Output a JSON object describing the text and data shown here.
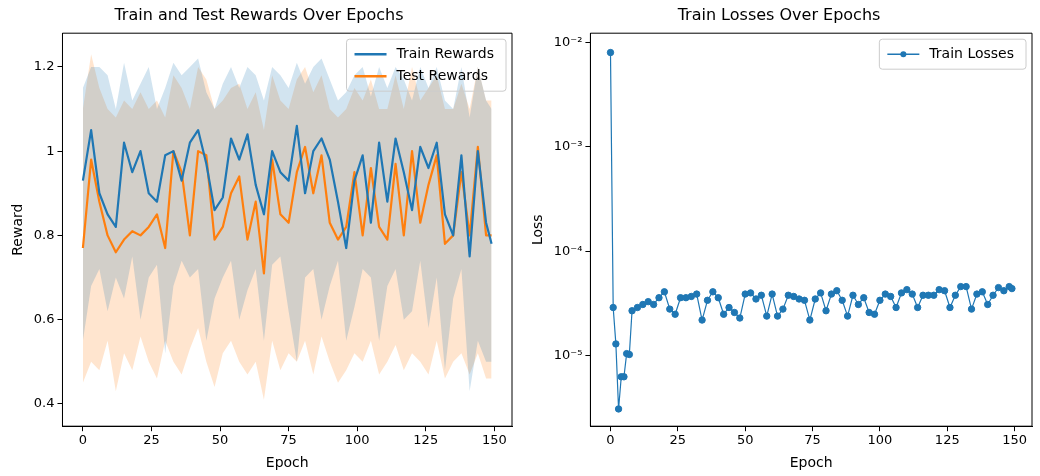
{
  "chart_data": [
    {
      "type": "line",
      "title": "Train and Test Rewards Over Epochs",
      "xlabel": "Epoch",
      "ylabel": "Reward",
      "x": [
        0,
        3,
        6,
        9,
        12,
        15,
        18,
        21,
        24,
        27,
        30,
        33,
        36,
        39,
        42,
        45,
        48,
        51,
        54,
        57,
        60,
        63,
        66,
        69,
        72,
        75,
        78,
        81,
        84,
        87,
        90,
        93,
        96,
        99,
        102,
        105,
        108,
        111,
        114,
        117,
        120,
        123,
        126,
        129,
        132,
        135,
        138,
        141,
        144,
        147,
        149
      ],
      "series": [
        {
          "name": "Train Rewards",
          "color": "#1f77b4",
          "values": [
            0.93,
            1.05,
            0.9,
            0.85,
            0.82,
            1.02,
            0.95,
            1.0,
            0.9,
            0.88,
            0.99,
            1.0,
            0.93,
            1.02,
            1.05,
            0.97,
            0.86,
            0.89,
            1.03,
            0.98,
            1.04,
            0.92,
            0.85,
            1.0,
            0.95,
            0.93,
            1.06,
            0.9,
            1.0,
            1.03,
            0.98,
            0.88,
            0.77,
            0.93,
            0.99,
            0.83,
            1.02,
            0.88,
            1.03,
            0.95,
            0.86,
            1.01,
            0.96,
            1.02,
            0.85,
            0.8,
            0.99,
            0.75,
            1.0,
            0.83,
            0.78
          ],
          "lower": [
            0.55,
            0.68,
            0.72,
            0.62,
            0.7,
            0.65,
            0.75,
            0.6,
            0.7,
            0.73,
            0.52,
            0.68,
            0.74,
            0.7,
            0.72,
            0.55,
            0.65,
            0.7,
            0.74,
            0.6,
            0.67,
            0.72,
            0.55,
            0.73,
            0.75,
            0.62,
            0.5,
            0.7,
            0.72,
            0.6,
            0.68,
            0.74,
            0.55,
            0.63,
            0.72,
            0.7,
            0.55,
            0.68,
            0.72,
            0.6,
            0.62,
            0.74,
            0.58,
            0.7,
            0.48,
            0.65,
            0.72,
            0.43,
            0.55,
            0.5,
            0.5
          ],
          "upper": [
            1.15,
            1.2,
            1.2,
            1.18,
            1.1,
            1.21,
            1.12,
            1.16,
            1.2,
            1.1,
            1.15,
            1.21,
            1.18,
            1.2,
            1.22,
            1.14,
            1.1,
            1.16,
            1.2,
            1.15,
            1.2,
            1.18,
            1.12,
            1.2,
            1.18,
            1.15,
            1.21,
            1.16,
            1.2,
            1.22,
            1.17,
            1.12,
            1.14,
            1.18,
            1.2,
            1.13,
            1.2,
            1.15,
            1.2,
            1.17,
            1.12,
            1.2,
            1.15,
            1.2,
            1.12,
            1.1,
            1.2,
            1.08,
            1.2,
            1.12,
            1.1
          ]
        },
        {
          "name": "Test Rewards",
          "color": "#ff7f0e",
          "values": [
            0.77,
            0.98,
            0.88,
            0.8,
            0.76,
            0.79,
            0.81,
            0.8,
            0.82,
            0.85,
            0.77,
            1.0,
            0.95,
            0.8,
            1.0,
            0.99,
            0.79,
            0.82,
            0.9,
            0.94,
            0.79,
            0.88,
            0.71,
            0.98,
            0.85,
            0.83,
            0.95,
            1.01,
            0.9,
            0.99,
            0.83,
            0.79,
            0.82,
            0.95,
            0.8,
            0.96,
            0.82,
            0.79,
            0.97,
            0.8,
            1.0,
            0.83,
            0.92,
            0.99,
            0.78,
            0.8,
            0.95,
            0.8,
            1.01,
            0.8,
            0.8
          ],
          "lower": [
            0.45,
            0.5,
            0.48,
            0.55,
            0.43,
            0.52,
            0.48,
            0.56,
            0.5,
            0.46,
            0.55,
            0.5,
            0.47,
            0.53,
            0.58,
            0.5,
            0.44,
            0.52,
            0.55,
            0.5,
            0.47,
            0.5,
            0.41,
            0.55,
            0.48,
            0.52,
            0.5,
            0.55,
            0.47,
            0.56,
            0.5,
            0.45,
            0.48,
            0.52,
            0.5,
            0.55,
            0.47,
            0.5,
            0.54,
            0.48,
            0.52,
            0.5,
            0.47,
            0.55,
            0.46,
            0.5,
            0.52,
            0.47,
            0.52,
            0.46,
            0.46
          ],
          "upper": [
            1.1,
            1.23,
            1.15,
            1.1,
            1.08,
            1.12,
            1.1,
            1.14,
            1.1,
            1.12,
            1.08,
            1.18,
            1.15,
            1.1,
            1.2,
            1.17,
            1.1,
            1.12,
            1.15,
            1.16,
            1.1,
            1.14,
            1.05,
            1.18,
            1.12,
            1.1,
            1.17,
            1.2,
            1.14,
            1.18,
            1.1,
            1.08,
            1.1,
            1.15,
            1.12,
            1.17,
            1.1,
            1.1,
            1.18,
            1.1,
            1.2,
            1.12,
            1.15,
            1.18,
            1.1,
            1.1,
            1.16,
            1.1,
            1.2,
            1.12,
            1.12
          ]
        }
      ],
      "xlim": [
        -7.45,
        156.45
      ],
      "xticks": [
        0,
        25,
        50,
        75,
        100,
        125,
        150
      ],
      "ylim": [
        0.347,
        1.28
      ],
      "yticks": [
        0.4,
        0.6,
        0.8,
        1.0,
        1.2
      ],
      "grid": false,
      "legend": "top right",
      "marker": "none",
      "line_style": "solid"
    },
    {
      "type": "line",
      "title": "Train Losses Over Epochs",
      "xlabel": "Epoch",
      "ylabel": "Loss",
      "x": [
        0,
        1,
        2,
        3,
        4,
        5,
        6,
        7,
        8,
        10,
        12,
        14,
        16,
        18,
        20,
        22,
        24,
        26,
        28,
        30,
        32,
        34,
        36,
        38,
        40,
        42,
        44,
        46,
        48,
        50,
        52,
        54,
        56,
        58,
        60,
        62,
        64,
        66,
        68,
        70,
        72,
        74,
        76,
        78,
        80,
        82,
        84,
        86,
        88,
        90,
        92,
        94,
        96,
        98,
        100,
        102,
        104,
        106,
        108,
        110,
        112,
        114,
        116,
        118,
        120,
        122,
        124,
        126,
        128,
        130,
        132,
        134,
        136,
        138,
        140,
        142,
        144,
        146,
        148,
        149
      ],
      "series": [
        {
          "name": "Train Losses",
          "color": "#1f77b4",
          "values": [
            0.008,
            2.9e-05,
            1.3e-05,
            3.1e-06,
            6.3e-06,
            6.3e-06,
            1.05e-05,
            1.03e-05,
            2.7e-05,
            2.9e-05,
            3.1e-05,
            3.3e-05,
            3.1e-05,
            3.6e-05,
            4.1e-05,
            2.8e-05,
            2.5e-05,
            3.6e-05,
            3.6e-05,
            3.7e-05,
            3.9e-05,
            2.2e-05,
            3.4e-05,
            4.1e-05,
            3.6e-05,
            2.5e-05,
            2.9e-05,
            2.6e-05,
            2.3e-05,
            3.9e-05,
            4e-05,
            3.5e-05,
            3.8e-05,
            2.4e-05,
            3.9e-05,
            2.4e-05,
            2.8e-05,
            3.8e-05,
            3.7e-05,
            3.5e-05,
            3.4e-05,
            2.2e-05,
            3.5e-05,
            4e-05,
            2.7e-05,
            3.9e-05,
            4.2e-05,
            3.4e-05,
            2.4e-05,
            3.8e-05,
            3.1e-05,
            3.6e-05,
            2.6e-05,
            2.5e-05,
            3.4e-05,
            3.9e-05,
            3.7e-05,
            2.9e-05,
            4e-05,
            4.3e-05,
            3.9e-05,
            2.9e-05,
            3.8e-05,
            3.8e-05,
            3.8e-05,
            4.3e-05,
            4.2e-05,
            2.9e-05,
            3.8e-05,
            4.6e-05,
            4.6e-05,
            2.8e-05,
            3.9e-05,
            4.1e-05,
            3.1e-05,
            3.8e-05,
            4.5e-05,
            4.2e-05,
            4.6e-05,
            4.4e-05
          ]
        }
      ],
      "xlim": [
        -7.45,
        156.45
      ],
      "xticks": [
        0,
        25,
        50,
        75,
        100,
        125,
        150
      ],
      "log": "y",
      "ylim": [
        2.12e-06,
        0.01225
      ],
      "yticks": [
        {
          "value": 1e-05,
          "label": "10⁻⁵"
        },
        {
          "value": 0.0001,
          "label": "10⁻⁴"
        },
        {
          "value": 0.001,
          "label": "10⁻³"
        },
        {
          "value": 0.01,
          "label": "10⁻²"
        }
      ],
      "grid": false,
      "legend": "top right",
      "marker": "circle",
      "line_style": "solid"
    }
  ]
}
